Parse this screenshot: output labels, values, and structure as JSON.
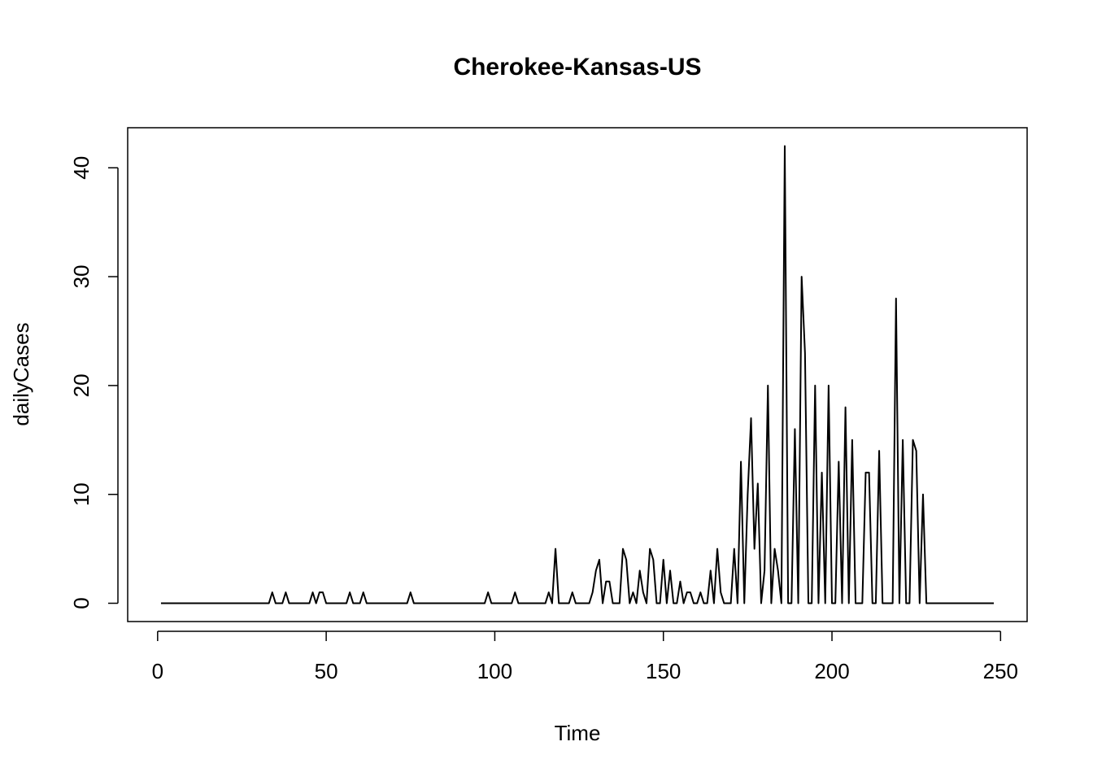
{
  "chart_data": {
    "type": "line",
    "title": "Cherokee-Kansas-US",
    "xlabel": "Time",
    "ylabel": "dailyCases",
    "x": [
      1,
      2,
      3,
      4,
      5,
      6,
      7,
      8,
      9,
      10,
      11,
      12,
      13,
      14,
      15,
      16,
      17,
      18,
      19,
      20,
      21,
      22,
      23,
      24,
      25,
      26,
      27,
      28,
      29,
      30,
      31,
      32,
      33,
      34,
      35,
      36,
      37,
      38,
      39,
      40,
      41,
      42,
      43,
      44,
      45,
      46,
      47,
      48,
      49,
      50,
      51,
      52,
      53,
      54,
      55,
      56,
      57,
      58,
      59,
      60,
      61,
      62,
      63,
      64,
      65,
      66,
      67,
      68,
      69,
      70,
      71,
      72,
      73,
      74,
      75,
      76,
      77,
      78,
      79,
      80,
      81,
      82,
      83,
      84,
      85,
      86,
      87,
      88,
      89,
      90,
      91,
      92,
      93,
      94,
      95,
      96,
      97,
      98,
      99,
      100,
      101,
      102,
      103,
      104,
      105,
      106,
      107,
      108,
      109,
      110,
      111,
      112,
      113,
      114,
      115,
      116,
      117,
      118,
      119,
      120,
      121,
      122,
      123,
      124,
      125,
      126,
      127,
      128,
      129,
      130,
      131,
      132,
      133,
      134,
      135,
      136,
      137,
      138,
      139,
      140,
      141,
      142,
      143,
      144,
      145,
      146,
      147,
      148,
      149,
      150,
      151,
      152,
      153,
      154,
      155,
      156,
      157,
      158,
      159,
      160,
      161,
      162,
      163,
      164,
      165,
      166,
      167,
      168,
      169,
      170,
      171,
      172,
      173,
      174,
      175,
      176,
      177,
      178,
      179,
      180,
      181,
      182,
      183,
      184,
      185,
      186,
      187,
      188,
      189,
      190,
      191,
      192,
      193,
      194,
      195,
      196,
      197,
      198,
      199,
      200,
      201,
      202,
      203,
      204,
      205,
      206,
      207,
      208,
      209,
      210,
      211,
      212,
      213,
      214,
      215,
      216,
      217,
      218,
      219,
      220,
      221,
      222,
      223,
      224,
      225,
      226,
      227,
      228,
      229,
      230,
      231,
      232,
      233,
      234,
      235,
      236,
      237,
      238,
      239,
      240,
      241,
      242,
      243,
      244,
      245,
      246,
      247,
      248
    ],
    "values": [
      0,
      0,
      0,
      0,
      0,
      0,
      0,
      0,
      0,
      0,
      0,
      0,
      0,
      0,
      0,
      0,
      0,
      0,
      0,
      0,
      0,
      0,
      0,
      0,
      0,
      0,
      0,
      0,
      0,
      0,
      0,
      0,
      0,
      1,
      0,
      0,
      0,
      1,
      0,
      0,
      0,
      0,
      0,
      0,
      0,
      1,
      0,
      1,
      1,
      0,
      0,
      0,
      0,
      0,
      0,
      0,
      1,
      0,
      0,
      0,
      1,
      0,
      0,
      0,
      0,
      0,
      0,
      0,
      0,
      0,
      0,
      0,
      0,
      0,
      1,
      0,
      0,
      0,
      0,
      0,
      0,
      0,
      0,
      0,
      0,
      0,
      0,
      0,
      0,
      0,
      0,
      0,
      0,
      0,
      0,
      0,
      0,
      1,
      0,
      0,
      0,
      0,
      0,
      0,
      0,
      1,
      0,
      0,
      0,
      0,
      0,
      0,
      0,
      0,
      0,
      1,
      0,
      5,
      0,
      0,
      0,
      0,
      1,
      0,
      0,
      0,
      0,
      0,
      1,
      3,
      4,
      0,
      2,
      2,
      0,
      0,
      0,
      5,
      4,
      0,
      1,
      0,
      3,
      1,
      0,
      5,
      4,
      0,
      0,
      4,
      0,
      3,
      0,
      0,
      2,
      0,
      1,
      1,
      0,
      0,
      1,
      0,
      0,
      3,
      0,
      5,
      1,
      0,
      0,
      0,
      5,
      0,
      13,
      0,
      10,
      17,
      5,
      11,
      0,
      3,
      20,
      0,
      5,
      3,
      0,
      42,
      0,
      0,
      16,
      0,
      30,
      23,
      0,
      0,
      20,
      0,
      12,
      0,
      20,
      0,
      0,
      13,
      0,
      18,
      0,
      15,
      0,
      0,
      0,
      12,
      12,
      0,
      0,
      14,
      0,
      0,
      0,
      0,
      28,
      0,
      15,
      0,
      0,
      15,
      14,
      0,
      10,
      0,
      0,
      0,
      0,
      0,
      0,
      0,
      0,
      0,
      0,
      0,
      0,
      0,
      0,
      0,
      0,
      0,
      0,
      0,
      0,
      0
    ],
    "color": "#000000",
    "xlim": [
      -8.88,
      257.88
    ],
    "xticks": [
      0,
      50,
      100,
      150,
      200,
      250
    ],
    "ylim": [
      -1.68,
      43.68
    ],
    "yticks": [
      0,
      10,
      20,
      30,
      40
    ]
  }
}
